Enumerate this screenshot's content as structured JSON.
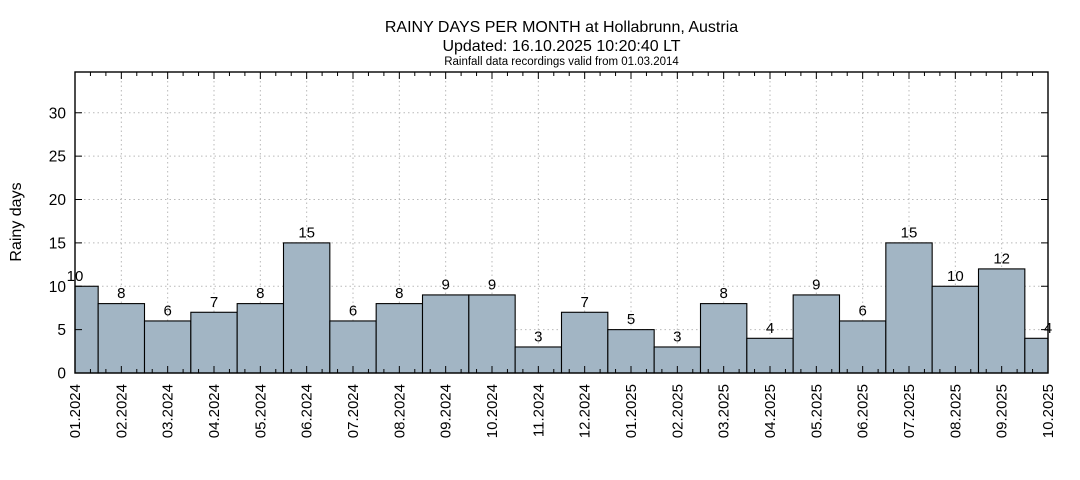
{
  "chart_data": {
    "type": "bar",
    "title": "RAINY DAYS PER MONTH at Hollabrunn, Austria",
    "subtitle": "Updated: 16.10.2025 10:20:40 LT",
    "note": "Rainfall data recordings valid from 01.03.2014",
    "ylabel": "Rainy days",
    "xlabel": "",
    "categories": [
      "01.2024",
      "02.2024",
      "03.2024",
      "04.2024",
      "05.2024",
      "06.2024",
      "07.2024",
      "08.2024",
      "09.2024",
      "10.2024",
      "11.2024",
      "12.2024",
      "01.2025",
      "02.2025",
      "03.2025",
      "04.2025",
      "05.2025",
      "06.2025",
      "07.2025",
      "08.2025",
      "09.2025",
      "10.2025"
    ],
    "values": [
      10,
      8,
      6,
      7,
      8,
      15,
      6,
      8,
      9,
      9,
      3,
      7,
      5,
      3,
      8,
      4,
      9,
      6,
      15,
      10,
      12,
      4
    ],
    "value_labels_shown": true,
    "yticks": [
      0,
      5,
      10,
      15,
      20,
      25,
      30
    ],
    "ylim": [
      0,
      34.7
    ],
    "grid": "dotted",
    "legend": "none",
    "colors": {
      "bar_fill": "#a2b5c4",
      "bar_border": "#000000",
      "grid_line": "#b9b9b9",
      "axis": "#000000",
      "background": "#ffffff"
    }
  }
}
